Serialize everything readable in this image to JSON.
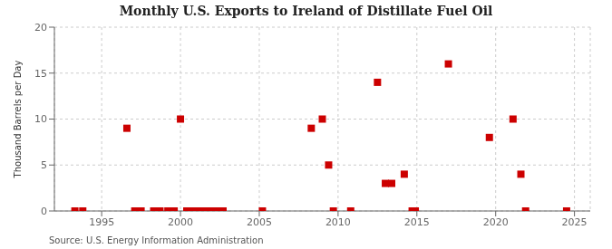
{
  "chart_data": {
    "type": "scatter",
    "title": "Monthly U.S. Exports to Ireland of Distillate Fuel Oil",
    "ylabel": "Thousand Barrels per Day",
    "annotation": "Source: U.S. Energy Information Administration",
    "x": [
      1993.3,
      1993.8,
      1996.6,
      1997.1,
      1997.5,
      1998.3,
      1998.7,
      1999.2,
      1999.6,
      2000.0,
      2000.4,
      2000.7,
      2001.0,
      2001.3,
      2001.5,
      2001.7,
      2001.9,
      2002.1,
      2002.3,
      2002.5,
      2002.7,
      2005.2,
      2008.3,
      2009.0,
      2009.4,
      2009.7,
      2010.8,
      2012.5,
      2013.0,
      2013.4,
      2014.2,
      2014.7,
      2014.9,
      2017.0,
      2019.6,
      2021.1,
      2021.6,
      2021.9,
      2024.5
    ],
    "values": [
      0,
      0,
      9,
      0,
      0,
      0,
      0,
      0,
      0,
      10,
      0,
      0,
      0,
      0,
      0,
      0,
      0,
      0,
      0,
      0,
      0,
      0,
      9,
      10,
      5,
      0,
      0,
      14,
      3,
      3,
      4,
      0,
      0,
      16,
      8,
      10,
      4,
      0,
      0
    ],
    "color": "#cc0000",
    "marker": "square",
    "xlim": [
      1992,
      2026
    ],
    "ylim": [
      0,
      20
    ],
    "xticks": [
      1995,
      2000,
      2005,
      2010,
      2015,
      2020,
      2025
    ],
    "yticks": [
      0,
      5,
      10,
      15,
      20
    ],
    "grid": true
  }
}
